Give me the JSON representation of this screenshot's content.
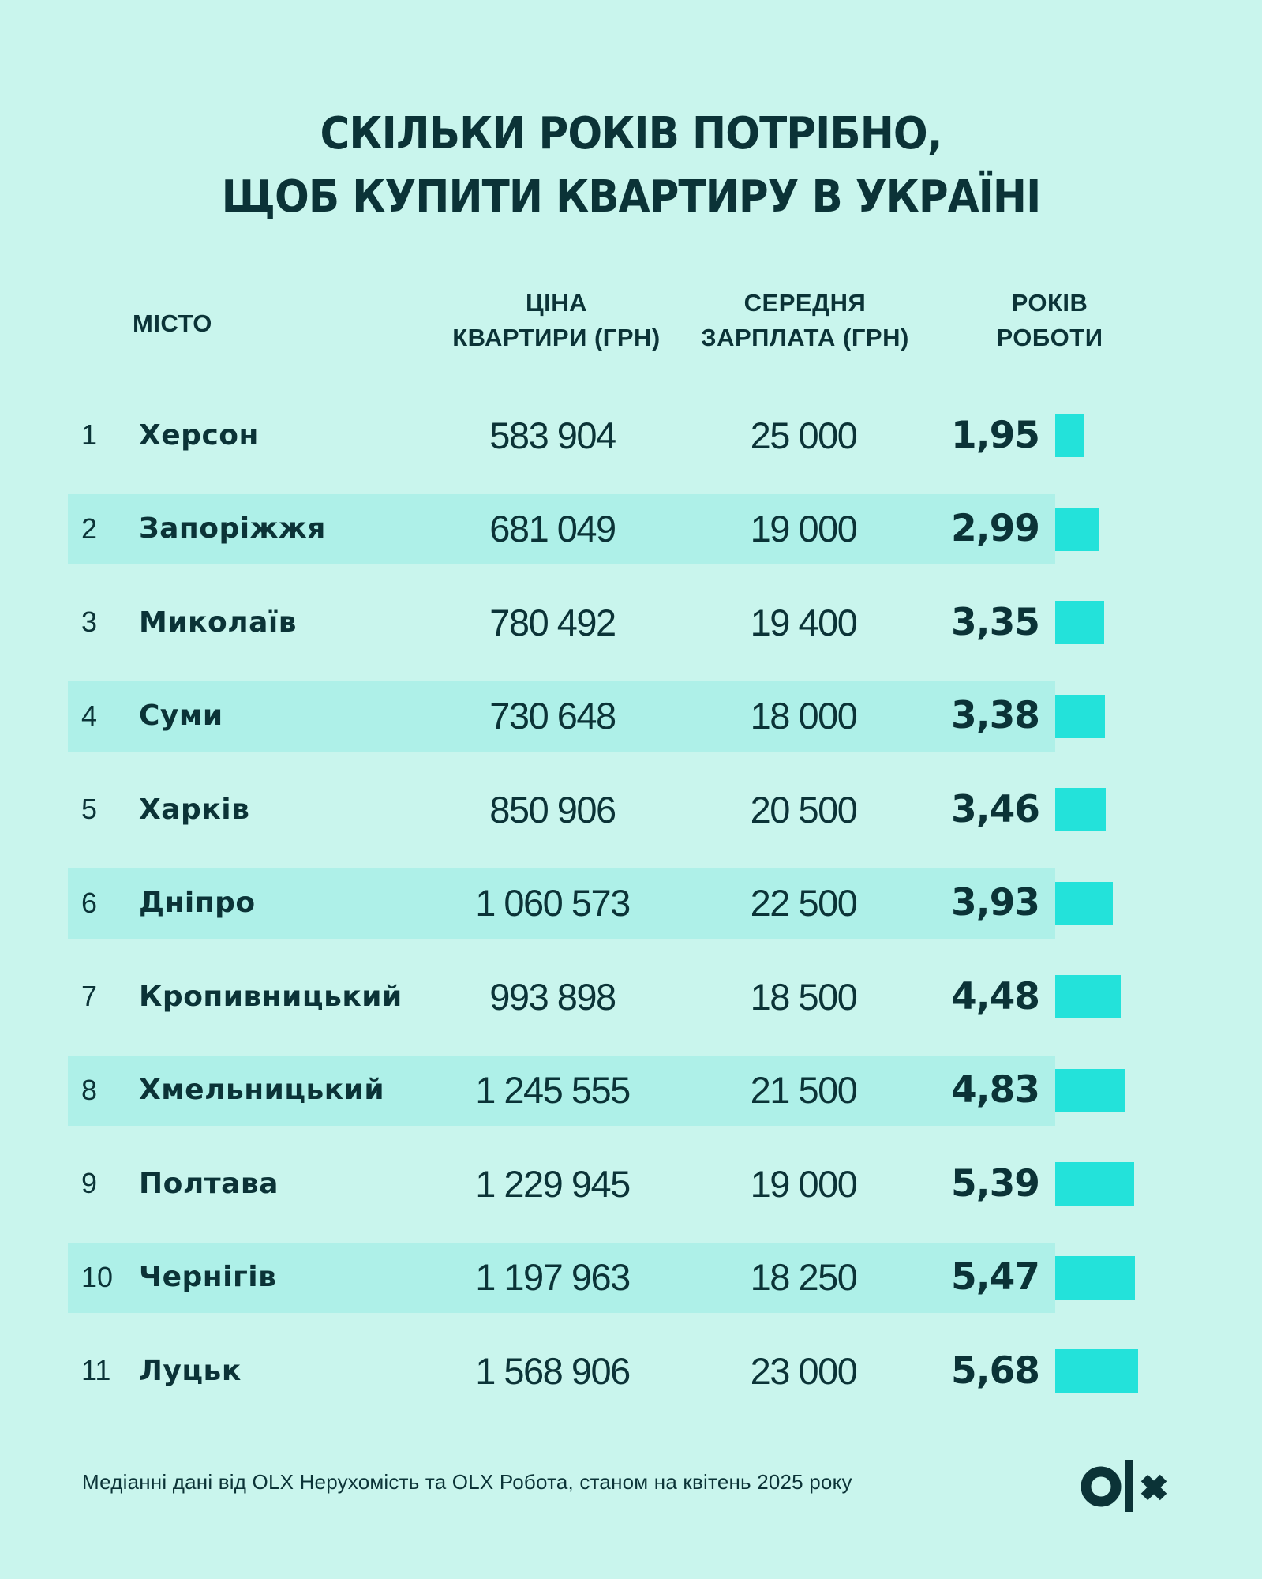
{
  "title": {
    "line1": "СКІЛЬКИ РОКІВ ПОТРІБНО,",
    "line2": "ЩОБ КУПИТИ КВАРТИРУ В УКРАЇНІ"
  },
  "headers": {
    "city": "МІСТО",
    "price_line1": "ЦІНА",
    "price_line2": "КВАРТИРИ (ГРН)",
    "salary_line1": "СЕРЕДНЯ",
    "salary_line2": "ЗАРПЛАТА (ГРН)",
    "years_line1": "РОКІВ",
    "years_line2": "РОБОТИ"
  },
  "rows": [
    {
      "rank": "1",
      "city": "Херсон",
      "price": "583 904",
      "salary": "25 000",
      "years": "1,95"
    },
    {
      "rank": "2",
      "city": "Запоріжжя",
      "price": "681 049",
      "salary": "19 000",
      "years": "2,99"
    },
    {
      "rank": "3",
      "city": "Миколаїв",
      "price": "780 492",
      "salary": "19 400",
      "years": "3,35"
    },
    {
      "rank": "4",
      "city": "Суми",
      "price": "730 648",
      "salary": "18 000",
      "years": "3,38"
    },
    {
      "rank": "5",
      "city": "Харків",
      "price": "850 906",
      "salary": "20 500",
      "years": "3,46"
    },
    {
      "rank": "6",
      "city": "Дніпро",
      "price": "1 060 573",
      "salary": "22 500",
      "years": "3,93"
    },
    {
      "rank": "7",
      "city": "Кропивницький",
      "price": "993 898",
      "salary": "18 500",
      "years": "4,48"
    },
    {
      "rank": "8",
      "city": "Хмельницький",
      "price": "1 245 555",
      "salary": "21 500",
      "years": "4,83"
    },
    {
      "rank": "9",
      "city": "Полтава",
      "price": "1 229 945",
      "salary": "19 000",
      "years": "5,39"
    },
    {
      "rank": "10",
      "city": "Чернігів",
      "price": "1 197 963",
      "salary": "18 250",
      "years": "5,47"
    },
    {
      "rank": "11",
      "city": "Луцьк",
      "price": "1 568 906",
      "salary": "23 000",
      "years": "5,68"
    }
  ],
  "footer": {
    "note": "Медіанні дані від OLX Нерухомість та OLX Робота, станом на квітень 2025 року",
    "logo": "olx-logo"
  },
  "colors": {
    "background": "#c9f5ed",
    "stripe": "#aef0e8",
    "bar": "#23e2da",
    "text": "#0b3337"
  },
  "chart_data": {
    "type": "table",
    "title": "Скільки років потрібно, щоб купити квартиру в Україні",
    "columns": [
      "№",
      "Місто",
      "Ціна квартири (грн)",
      "Середня зарплата (грн)",
      "Років роботи"
    ],
    "categories": [
      "Херсон",
      "Запоріжжя",
      "Миколаїв",
      "Суми",
      "Харків",
      "Дніпро",
      "Кропивницький",
      "Хмельницький",
      "Полтава",
      "Чернігів",
      "Луцьк"
    ],
    "series": [
      {
        "name": "Ціна квартири (грн)",
        "values": [
          583904,
          681049,
          780492,
          730648,
          850906,
          1060573,
          993898,
          1245555,
          1229945,
          1197963,
          1568906
        ]
      },
      {
        "name": "Середня зарплата (грн)",
        "values": [
          25000,
          19000,
          19400,
          18000,
          20500,
          22500,
          18500,
          21500,
          19000,
          18250,
          23000
        ]
      },
      {
        "name": "Років роботи",
        "values": [
          1.95,
          2.99,
          3.35,
          3.38,
          3.46,
          3.93,
          4.48,
          4.83,
          5.39,
          5.47,
          5.68
        ]
      }
    ],
    "bar_column": "Років роботи",
    "source_note": "Медіанні дані від OLX Нерухомість та OLX Робота, станом на квітень 2025 року"
  }
}
